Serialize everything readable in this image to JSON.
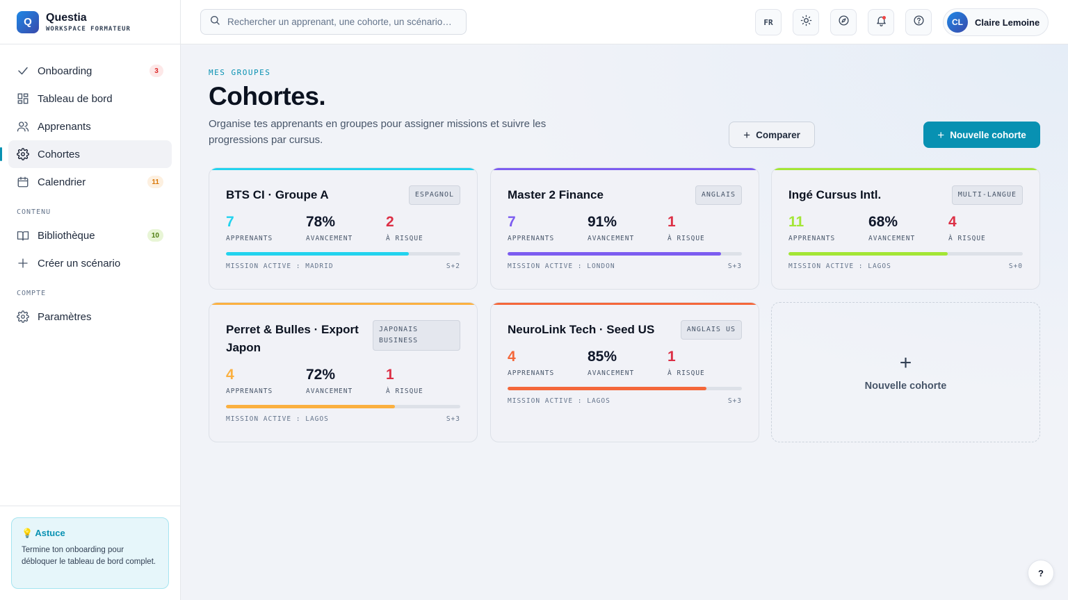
{
  "app": {
    "name": "Questia",
    "subtitle": "WORKSPACE FORMATEUR",
    "logo_letter": "Q"
  },
  "sidebar": {
    "items": [
      {
        "label": "Onboarding",
        "icon": "check-icon",
        "badge": "3",
        "badge_color": "#dc2626",
        "badge_bg": "#fde8e8"
      },
      {
        "label": "Tableau de bord",
        "icon": "dashboard-icon"
      },
      {
        "label": "Apprenants",
        "icon": "users-icon"
      },
      {
        "label": "Cohortes",
        "icon": "gear-icon",
        "active": true
      },
      {
        "label": "Calendrier",
        "icon": "calendar-icon",
        "badge": "11",
        "badge_color": "#d97706",
        "badge_bg": "#fdf0e0"
      }
    ],
    "section_content": "CONTENU",
    "content_items": [
      {
        "label": "Bibliothèque",
        "icon": "book-icon",
        "badge": "10",
        "badge_color": "#4d7c0f",
        "badge_bg": "#e8f5d6"
      },
      {
        "label": "Créer un scénario",
        "icon": "plus-icon"
      }
    ],
    "section_account": "COMPTE",
    "account_items": [
      {
        "label": "Paramètres",
        "icon": "settings-icon"
      }
    ],
    "tip": {
      "emoji": "💡",
      "title": "Astuce",
      "text": "Termine ton onboarding pour débloquer le tableau de bord complet."
    }
  },
  "topbar": {
    "search_placeholder": "Rechercher un apprenant, une cohorte, un scénario…",
    "lang": "FR",
    "user": {
      "initials": "CL",
      "name": "Claire Lemoine"
    }
  },
  "page": {
    "eyebrow": "MES GROUPES",
    "title": "Cohortes.",
    "subtitle": "Organise tes apprenants en groupes pour assigner missions et suivre les progressions par cursus.",
    "compare_label": "Comparer",
    "new_label": "Nouvelle cohorte"
  },
  "labels": {
    "learners": "APPRENANTS",
    "progress": "AVANCEMENT",
    "risk": "À RISQUE"
  },
  "cohorts": [
    {
      "name": "BTS CI · Groupe A",
      "tag": "ESPAGNOL",
      "color": "#22d3ee",
      "learners": "7",
      "progress": "78%",
      "progress_value": 0.78,
      "risk": "2",
      "mission": "MISSION ACTIVE : MADRID",
      "week": "S+2"
    },
    {
      "name": "Master 2 Finance",
      "tag": "ANGLAIS",
      "color": "#7c5cf0",
      "learners": "7",
      "progress": "91%",
      "progress_value": 0.91,
      "risk": "1",
      "mission": "MISSION ACTIVE : LONDON",
      "week": "S+3"
    },
    {
      "name": "Ingé Cursus Intl.",
      "tag": "MULTI-LANGUE",
      "color": "#a3e635",
      "learners": "11",
      "progress": "68%",
      "progress_value": 0.68,
      "risk": "4",
      "mission": "MISSION ACTIVE : LAGOS",
      "week": "S+0"
    },
    {
      "name": "Perret & Bulles · Export Japon",
      "tag": "JAPONAIS BUSINESS",
      "color": "#fbb040",
      "learners": "4",
      "progress": "72%",
      "progress_value": 0.72,
      "risk": "1",
      "mission": "MISSION ACTIVE : LAGOS",
      "week": "S+3"
    },
    {
      "name": "NeuroLink Tech · Seed US",
      "tag": "ANGLAIS US",
      "color": "#f4673a",
      "learners": "4",
      "progress": "85%",
      "progress_value": 0.85,
      "risk": "1",
      "mission": "MISSION ACTIVE : LAGOS",
      "week": "S+3"
    }
  ],
  "add_card_label": "Nouvelle cohorte",
  "risk_color": "#dc2f45",
  "help_label": "?"
}
